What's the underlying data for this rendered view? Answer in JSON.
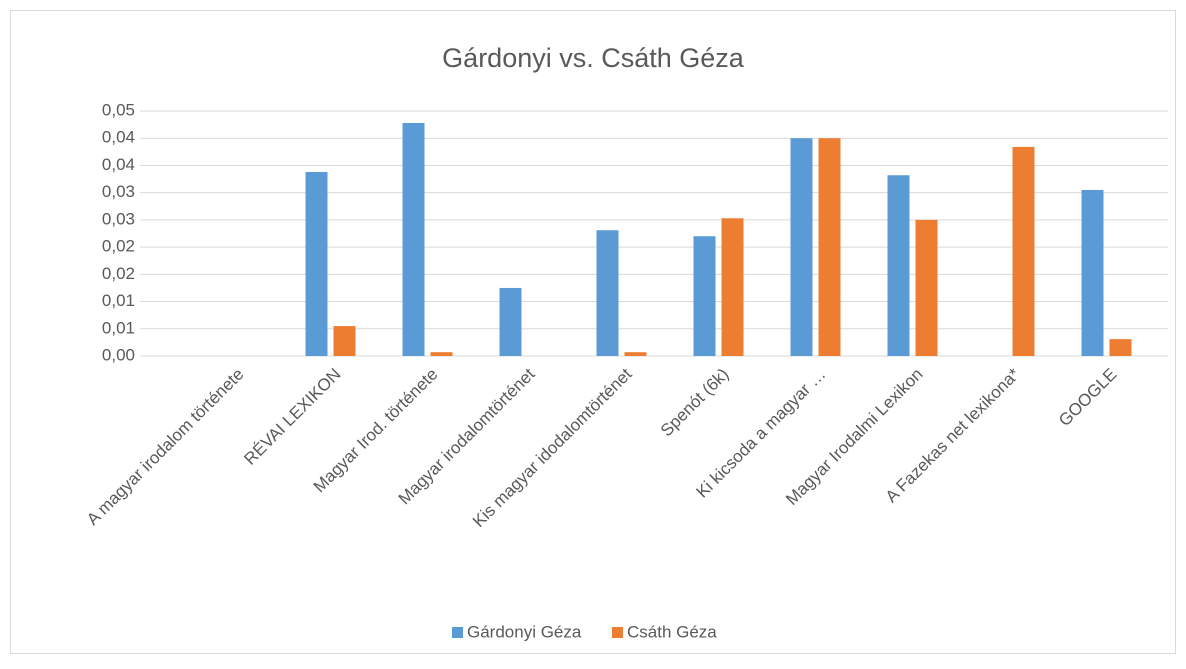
{
  "chart_data": {
    "type": "bar",
    "title": "Gárdonyi vs. Csáth Géza",
    "categories": [
      "A magyar irodalom története",
      "RÉVAI LEXIKON",
      "Magyar Irod. története",
      "Magyar irodalomtörténet",
      "Kis magyar idodalomtörténet",
      "Spenót (6k)",
      "Ki kicsoda a magyar …",
      "Magyar Irodalmi Lexikon",
      "A Fazekas net lexikona*",
      "GOOGLE"
    ],
    "series": [
      {
        "name": "Gárdonyi Géza",
        "color": "#5b9bd5",
        "values": [
          0,
          0.0338,
          0.0428,
          0.0125,
          0.0231,
          0.022,
          0.04,
          0.0332,
          0,
          0.0305
        ]
      },
      {
        "name": "Csáth Géza",
        "color": "#ed7d31",
        "values": [
          0,
          0.0055,
          0.0007,
          0,
          0.0007,
          0.0253,
          0.04,
          0.025,
          0.0384,
          0.0031
        ]
      }
    ],
    "ylim": [
      0,
      0.045
    ],
    "yticks": [
      {
        "value": 0,
        "label": "0,00"
      },
      {
        "value": 0.005,
        "label": "0,01"
      },
      {
        "value": 0.01,
        "label": "0,01"
      },
      {
        "value": 0.015,
        "label": "0,02"
      },
      {
        "value": 0.02,
        "label": "0,02"
      },
      {
        "value": 0.025,
        "label": "0,03"
      },
      {
        "value": 0.03,
        "label": "0,03"
      },
      {
        "value": 0.035,
        "label": "0,04"
      },
      {
        "value": 0.04,
        "label": "0,04"
      },
      {
        "value": 0.045,
        "label": "0,05"
      }
    ],
    "grid": true,
    "legend": "bottom"
  }
}
